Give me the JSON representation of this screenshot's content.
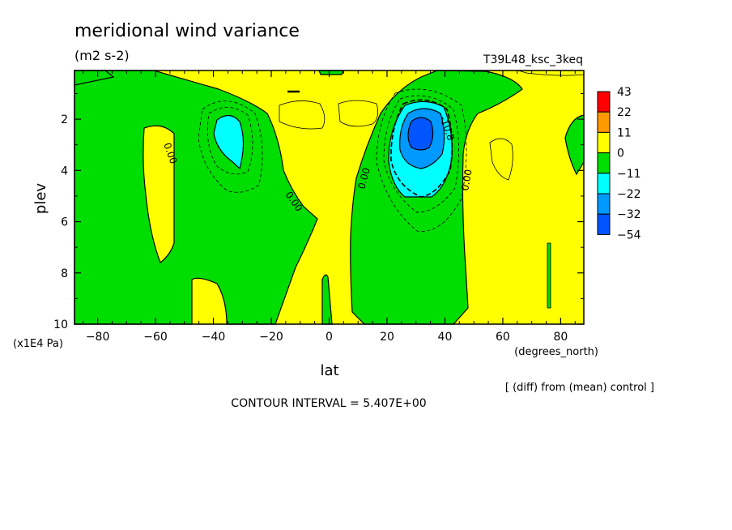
{
  "chart_data": {
    "type": "heatmap",
    "title": "meridional wind variance",
    "subtitle": "(m2 s-2)",
    "run_label": "T39L48_ksc_3keq",
    "xlabel": "lat",
    "xunits": "(degrees_north)",
    "ylabel": "plev",
    "yunits": "(x1E4 Pa)",
    "xlim": [
      -88,
      88
    ],
    "ylim": [
      10,
      0.1
    ],
    "xticks": [
      -80,
      -60,
      -40,
      -20,
      0,
      20,
      40,
      60,
      80
    ],
    "yticks": [
      2,
      4,
      6,
      8,
      10
    ],
    "note": "[ (diff) from (mean) control ]",
    "contour_interval": "CONTOUR INTERVAL = 5.407E+00",
    "contour_labels": [
      "0.00",
      "0.00",
      "0.00",
      "0.00",
      "-10.8"
    ],
    "legend": {
      "position": "right",
      "levels": [
        "43",
        "22",
        "11",
        "0",
        "-11",
        "-22",
        "-32",
        "-54"
      ],
      "colors": [
        "#ff0000",
        "#ff9900",
        "#ffff00",
        "#00dd00",
        "#00ffff",
        "#0099ff",
        "#0055ff"
      ]
    }
  }
}
